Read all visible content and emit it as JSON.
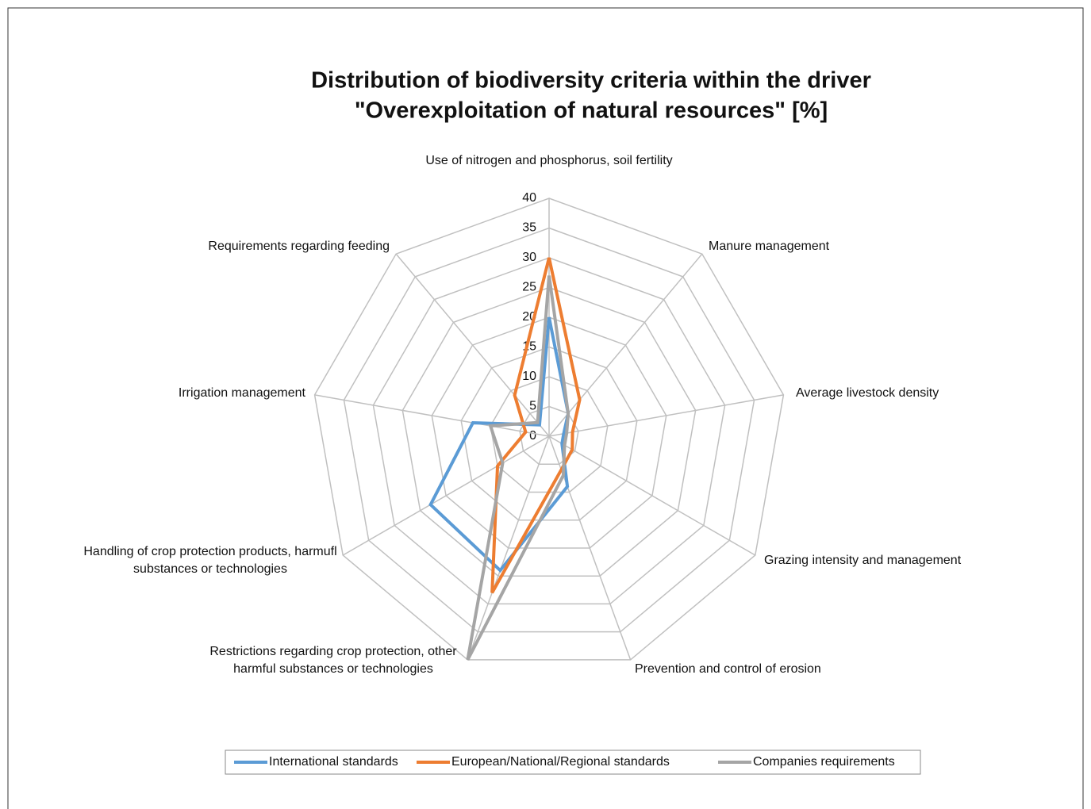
{
  "chart_data": {
    "type": "radar",
    "title": "Distribution of biodiversity criteria within the driver",
    "subtitle": "\"Overexploitation of natural resources\" [%]",
    "categories": [
      "Use of nitrogen and phosphorus, soil fertility",
      "Manure management",
      "Average livestock density",
      "Grazing intensity and management",
      "Prevention and control of erosion",
      "Restrictions regarding crop protection, other harmful substances or technologies",
      "Handling of crop protection products, harmufl substances or technologies",
      "Irrigation management",
      "Requirements regarding feeding"
    ],
    "series": [
      {
        "name": "International standards",
        "color": "#5b9bd5",
        "values": [
          20,
          5,
          2.5,
          2.5,
          9,
          24,
          23,
          13,
          2.5
        ]
      },
      {
        "name": "European/National/Regional standards",
        "color": "#ed7d31",
        "values": [
          30,
          8,
          4,
          4.5,
          6,
          28,
          10,
          4,
          9
        ]
      },
      {
        "name": "Companies requirements",
        "color": "#a5a5a5",
        "values": [
          27,
          5,
          3,
          3,
          7,
          40,
          9,
          10,
          3
        ]
      }
    ],
    "ylim": [
      0,
      40
    ],
    "yticks": [
      0,
      5,
      10,
      15,
      20,
      25,
      30,
      35,
      40
    ],
    "grid": true,
    "legend": "bottom"
  }
}
